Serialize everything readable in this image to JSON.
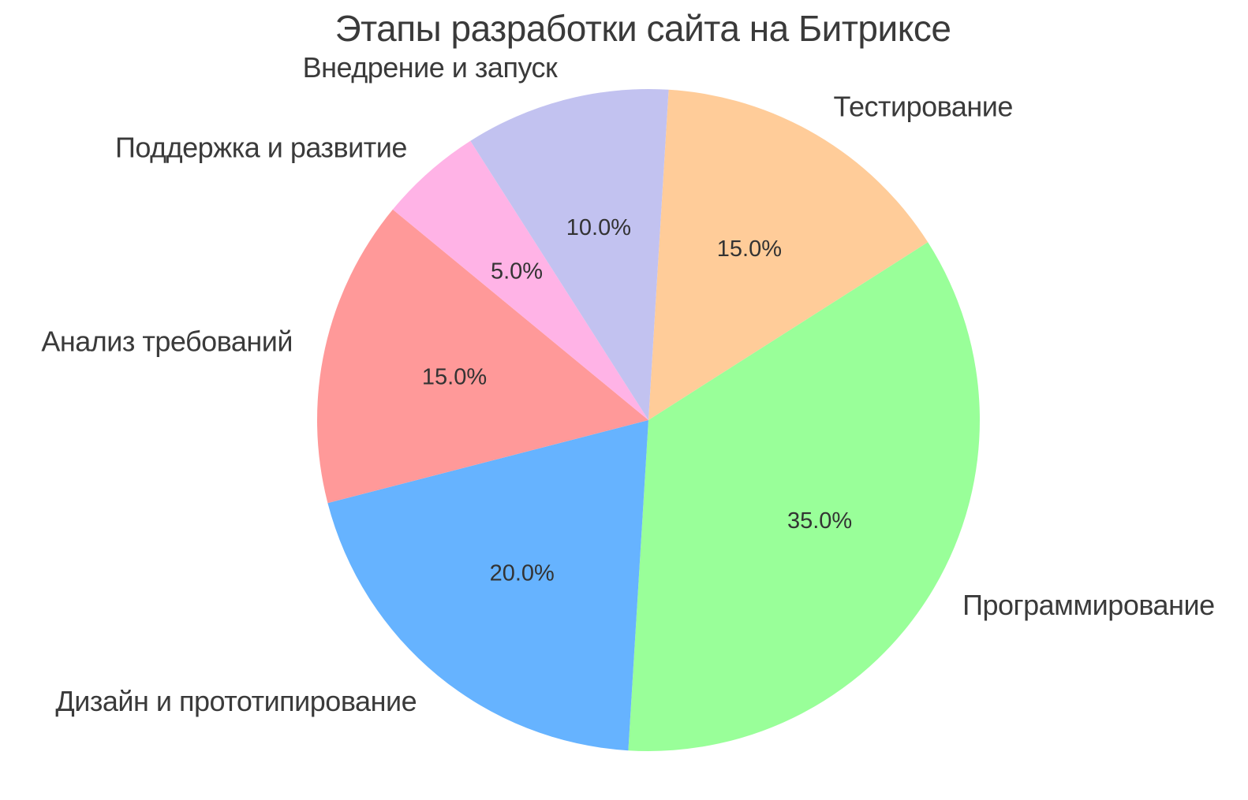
{
  "chart_data": {
    "type": "pie",
    "title": "Этапы разработки сайта на Битриксе",
    "labels": [
      "Тестирование",
      "Программирование",
      "Дизайн и прототипирование",
      "Анализ требований",
      "Поддержка и развитие",
      "Внедрение и запуск"
    ],
    "values": [
      15.0,
      35.0,
      20.0,
      15.0,
      5.0,
      10.0
    ],
    "pct_labels": [
      "15.0%",
      "35.0%",
      "20.0%",
      "15.0%",
      "5.0%",
      "10.0%"
    ],
    "colors": [
      "#ffcc99",
      "#99ff99",
      "#66b3ff",
      "#ff9999",
      "#ffb3e6",
      "#c2c2f0"
    ],
    "start_angle_deg": 86.5,
    "direction": "clockwise",
    "label_distance": 1.1,
    "pct_distance": 0.6,
    "legend": "none",
    "grid": "off",
    "text_color": "#3a3a3a",
    "background": "#ffffff"
  }
}
